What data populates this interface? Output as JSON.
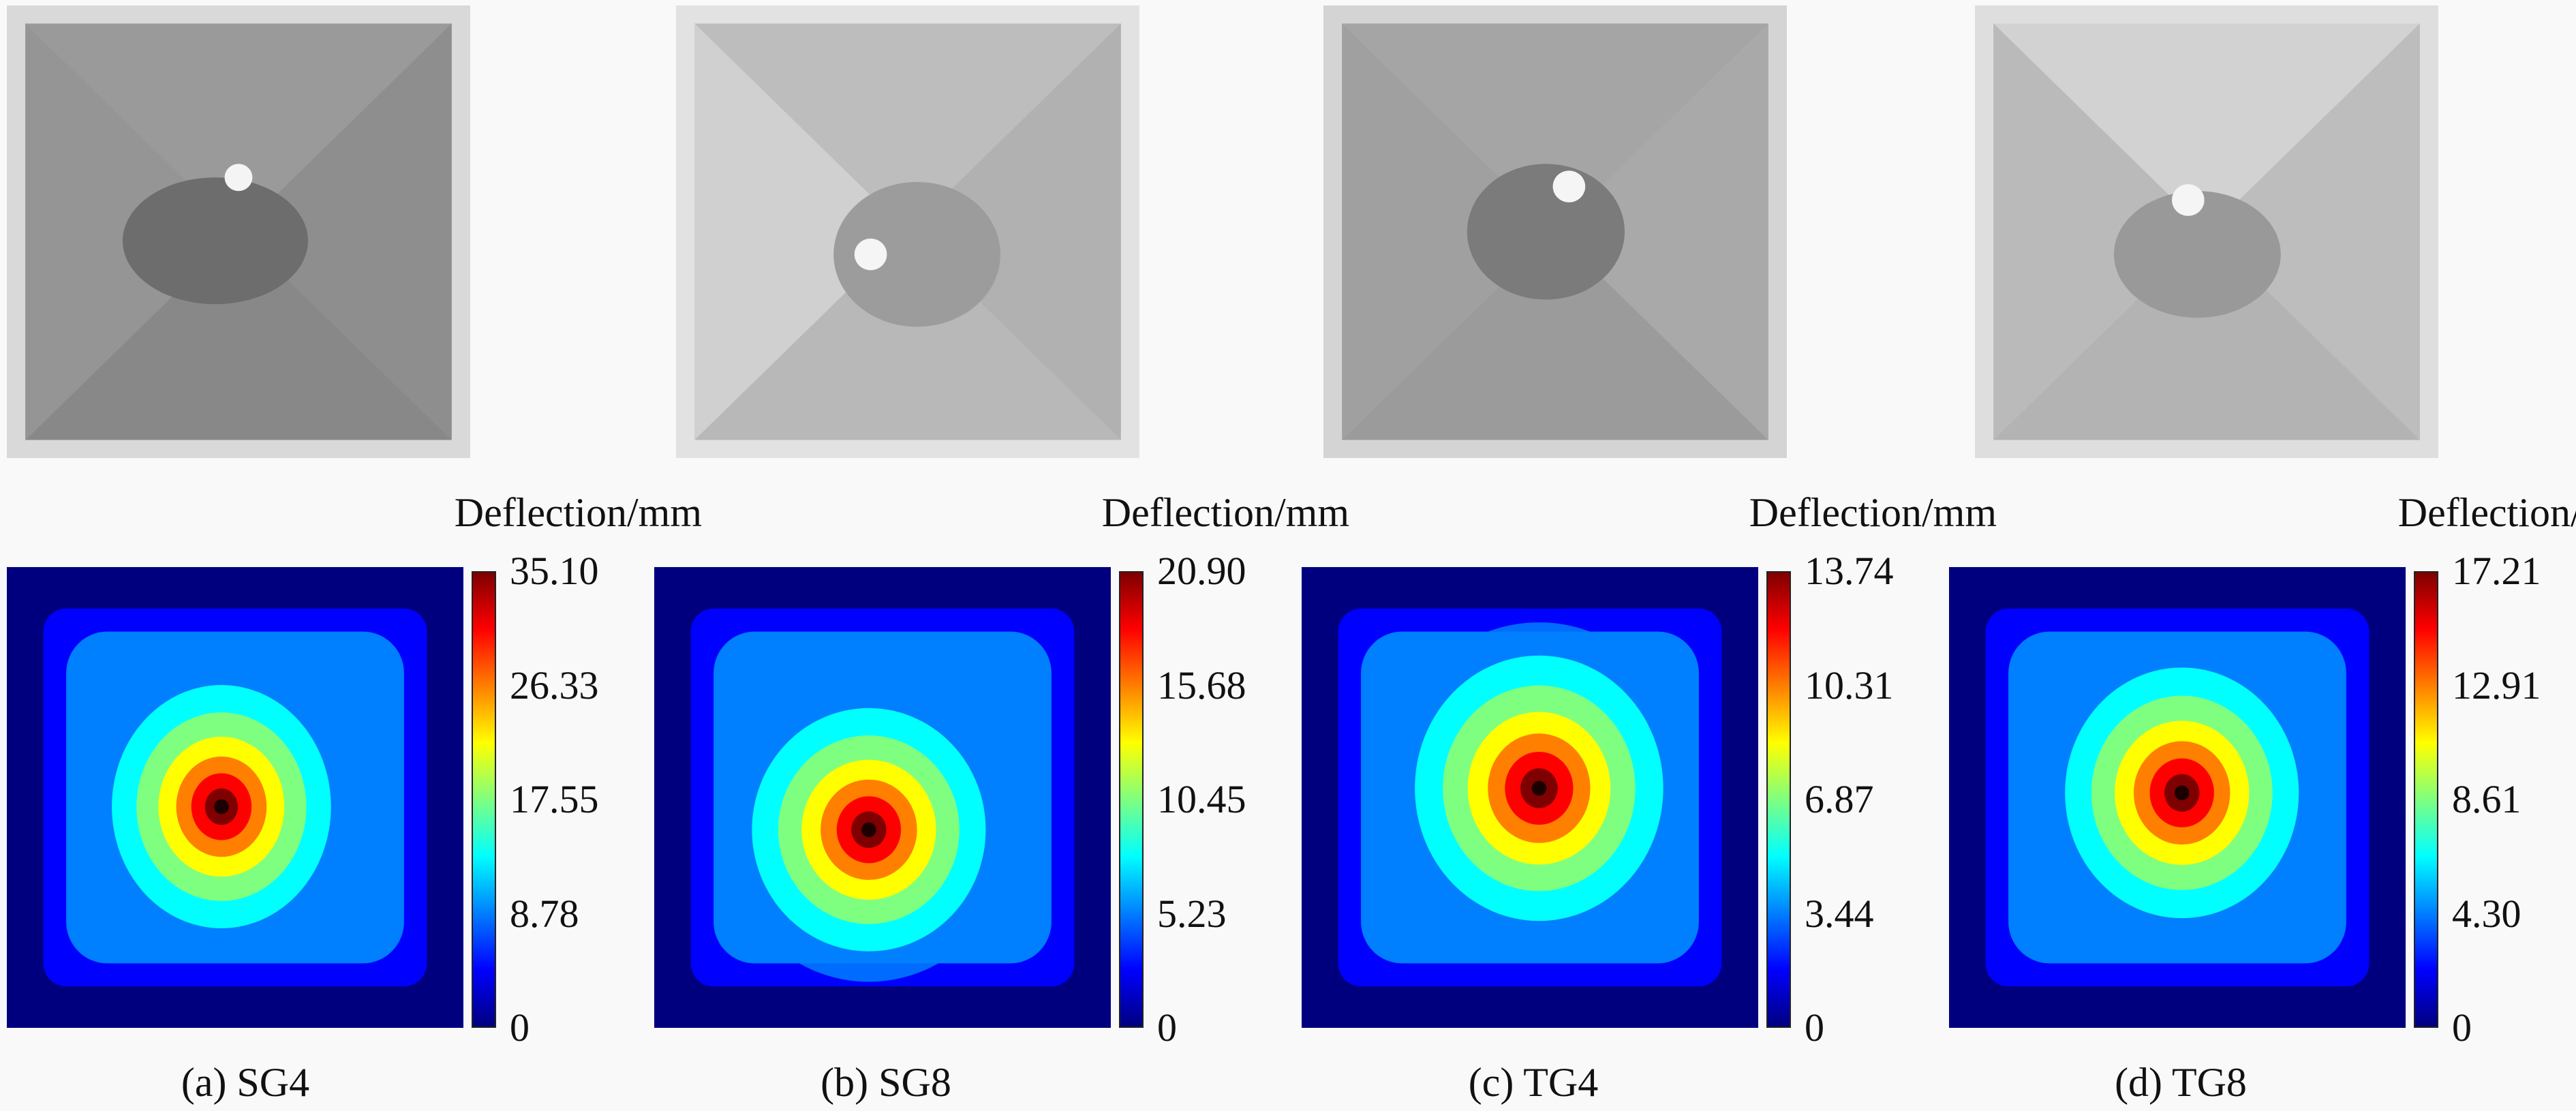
{
  "chart_data": [
    {
      "type": "heatmap",
      "caption": "(a) SG4",
      "colorbar_label": "Deflection/mm",
      "colorbar_ticks": [
        "35.10",
        "26.33",
        "17.55",
        "8.78",
        "0"
      ],
      "value_range": [
        0,
        35.1
      ],
      "colormap": "jet",
      "peak": {
        "x": 0.47,
        "y": 0.52,
        "rx": 0.3,
        "ry": 0.33
      }
    },
    {
      "type": "heatmap",
      "caption": "(b) SG8",
      "colorbar_label": "Deflection/mm",
      "colorbar_ticks": [
        "20.90",
        "15.68",
        "10.45",
        "5.23",
        "0"
      ],
      "value_range": [
        0,
        20.9
      ],
      "colormap": "jet",
      "peak": {
        "x": 0.47,
        "y": 0.57,
        "rx": 0.32,
        "ry": 0.33
      }
    },
    {
      "type": "heatmap",
      "caption": "(c) TG4",
      "colorbar_label": "Deflection/mm",
      "colorbar_ticks": [
        "13.74",
        "10.31",
        "6.87",
        "3.44",
        "0"
      ],
      "value_range": [
        0,
        13.74
      ],
      "colormap": "jet",
      "peak": {
        "x": 0.52,
        "y": 0.48,
        "rx": 0.34,
        "ry": 0.36
      }
    },
    {
      "type": "heatmap",
      "caption": "(d) TG8",
      "colorbar_label": "Deflection/mm",
      "colorbar_ticks": [
        "17.21",
        "12.91",
        "8.61",
        "4.30",
        "0"
      ],
      "value_range": [
        0,
        17.21
      ],
      "colormap": "jet",
      "peak": {
        "x": 0.51,
        "y": 0.49,
        "rx": 0.32,
        "ry": 0.34
      }
    }
  ]
}
